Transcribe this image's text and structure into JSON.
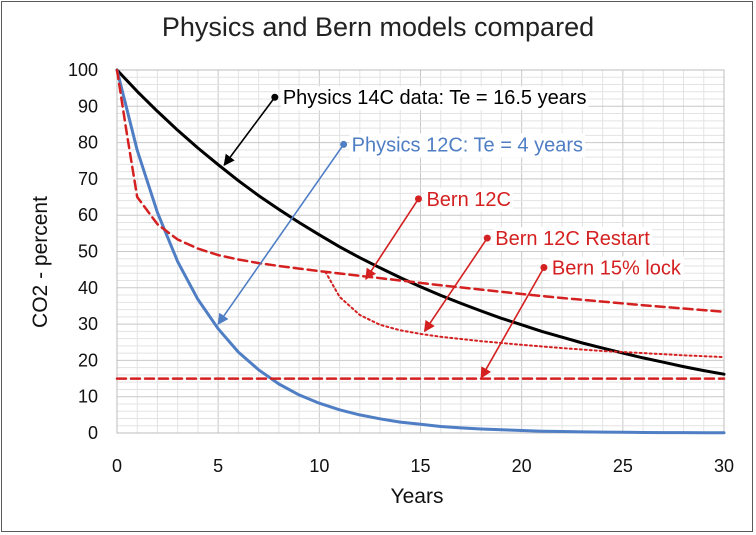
{
  "chart_data": {
    "type": "line",
    "title": "Physics and Bern models compared",
    "xlabel": "Years",
    "ylabel": "CO2 - percent",
    "xlim": [
      0,
      30
    ],
    "ylim": [
      0,
      100
    ],
    "x_ticks": [
      0,
      5,
      10,
      15,
      20,
      25,
      30
    ],
    "y_ticks": [
      0,
      10,
      20,
      30,
      40,
      50,
      60,
      70,
      80,
      90,
      100
    ],
    "grid": true,
    "series": [
      {
        "name": "Physics 14C data: Te = 16.5 years",
        "color": "#000000",
        "style": "solid",
        "x": [
          0,
          1,
          2,
          3,
          4,
          5,
          6,
          7,
          8,
          9,
          10,
          11,
          12,
          13,
          14,
          15,
          16,
          17,
          18,
          19,
          20,
          21,
          22,
          23,
          24,
          25,
          26,
          27,
          28,
          29,
          30
        ],
        "y": [
          100,
          94.1,
          88.6,
          83.4,
          78.5,
          73.9,
          69.5,
          65.4,
          61.6,
          58.0,
          54.6,
          51.3,
          48.3,
          45.5,
          42.8,
          40.3,
          37.9,
          35.7,
          33.6,
          31.6,
          29.8,
          28.0,
          26.4,
          24.8,
          23.4,
          22.0,
          20.7,
          19.5,
          18.3,
          17.2,
          16.2
        ]
      },
      {
        "name": "Physics 12C: Te = 4 years",
        "color": "#4f7ec4",
        "style": "solid",
        "x": [
          0,
          1,
          2,
          3,
          4,
          5,
          6,
          7,
          8,
          9,
          10,
          11,
          12,
          13,
          14,
          15,
          16,
          17,
          18,
          19,
          20,
          21,
          22,
          23,
          24,
          25,
          26,
          27,
          28,
          29,
          30
        ],
        "y": [
          100,
          77.9,
          60.7,
          47.2,
          36.8,
          28.7,
          22.3,
          17.4,
          13.5,
          10.5,
          8.2,
          6.4,
          5.0,
          3.9,
          3.0,
          2.4,
          1.8,
          1.4,
          1.1,
          0.9,
          0.7,
          0.5,
          0.4,
          0.3,
          0.25,
          0.2,
          0.15,
          0.1,
          0.1,
          0.05,
          0.05
        ]
      },
      {
        "name": "Bern 12C",
        "color": "#d42020",
        "style": "dashed",
        "x": [
          0,
          0.5,
          1,
          2,
          3,
          4,
          5,
          6,
          7,
          8,
          9,
          10,
          12,
          14,
          16,
          18,
          20,
          22,
          24,
          26,
          28,
          30
        ],
        "y": [
          100,
          82,
          65,
          57.5,
          53.3,
          50.8,
          49.0,
          47.8,
          46.8,
          46.0,
          45.3,
          44.6,
          43.3,
          42.0,
          40.7,
          39.5,
          38.3,
          37.2,
          36.2,
          35.2,
          34.3,
          33.4
        ]
      },
      {
        "name": "Bern 12C Restart",
        "color": "#d42020",
        "style": "dotted",
        "x": [
          10.3,
          11,
          12,
          13,
          14,
          15,
          16,
          18,
          20,
          22,
          24,
          26,
          28,
          30
        ],
        "y": [
          44.4,
          37.5,
          32.5,
          29.8,
          28.3,
          27.3,
          26.5,
          25.3,
          24.3,
          23.4,
          22.6,
          22.0,
          21.4,
          20.9
        ]
      },
      {
        "name": "Bern 15% lock",
        "color": "#d42020",
        "style": "dashed",
        "x": [
          0,
          30
        ],
        "y": [
          15,
          15
        ]
      }
    ],
    "annotations": [
      {
        "text": "Physics 14C data: Te = 16.5 years",
        "color": "#000000",
        "dot": [
          7.8,
          92.5
        ],
        "arrow_to": [
          5.3,
          73.8
        ]
      },
      {
        "text": "Physics 12C: Te = 4 years",
        "color": "#4f7ec4",
        "dot": [
          11.2,
          79.5
        ],
        "arrow_to": [
          5.0,
          30.0
        ]
      },
      {
        "text": "Bern 12C",
        "color": "#d42020",
        "dot": [
          14.9,
          64.5
        ],
        "arrow_to": [
          12.3,
          42.4
        ]
      },
      {
        "text": "Bern 12C Restart",
        "color": "#d42020",
        "dot": [
          18.3,
          53.7
        ],
        "arrow_to": [
          15.2,
          28.0
        ]
      },
      {
        "text": "Bern 15% lock",
        "color": "#d42020",
        "dot": [
          21.1,
          45.6
        ],
        "arrow_to": [
          18.0,
          15.2
        ]
      }
    ]
  }
}
